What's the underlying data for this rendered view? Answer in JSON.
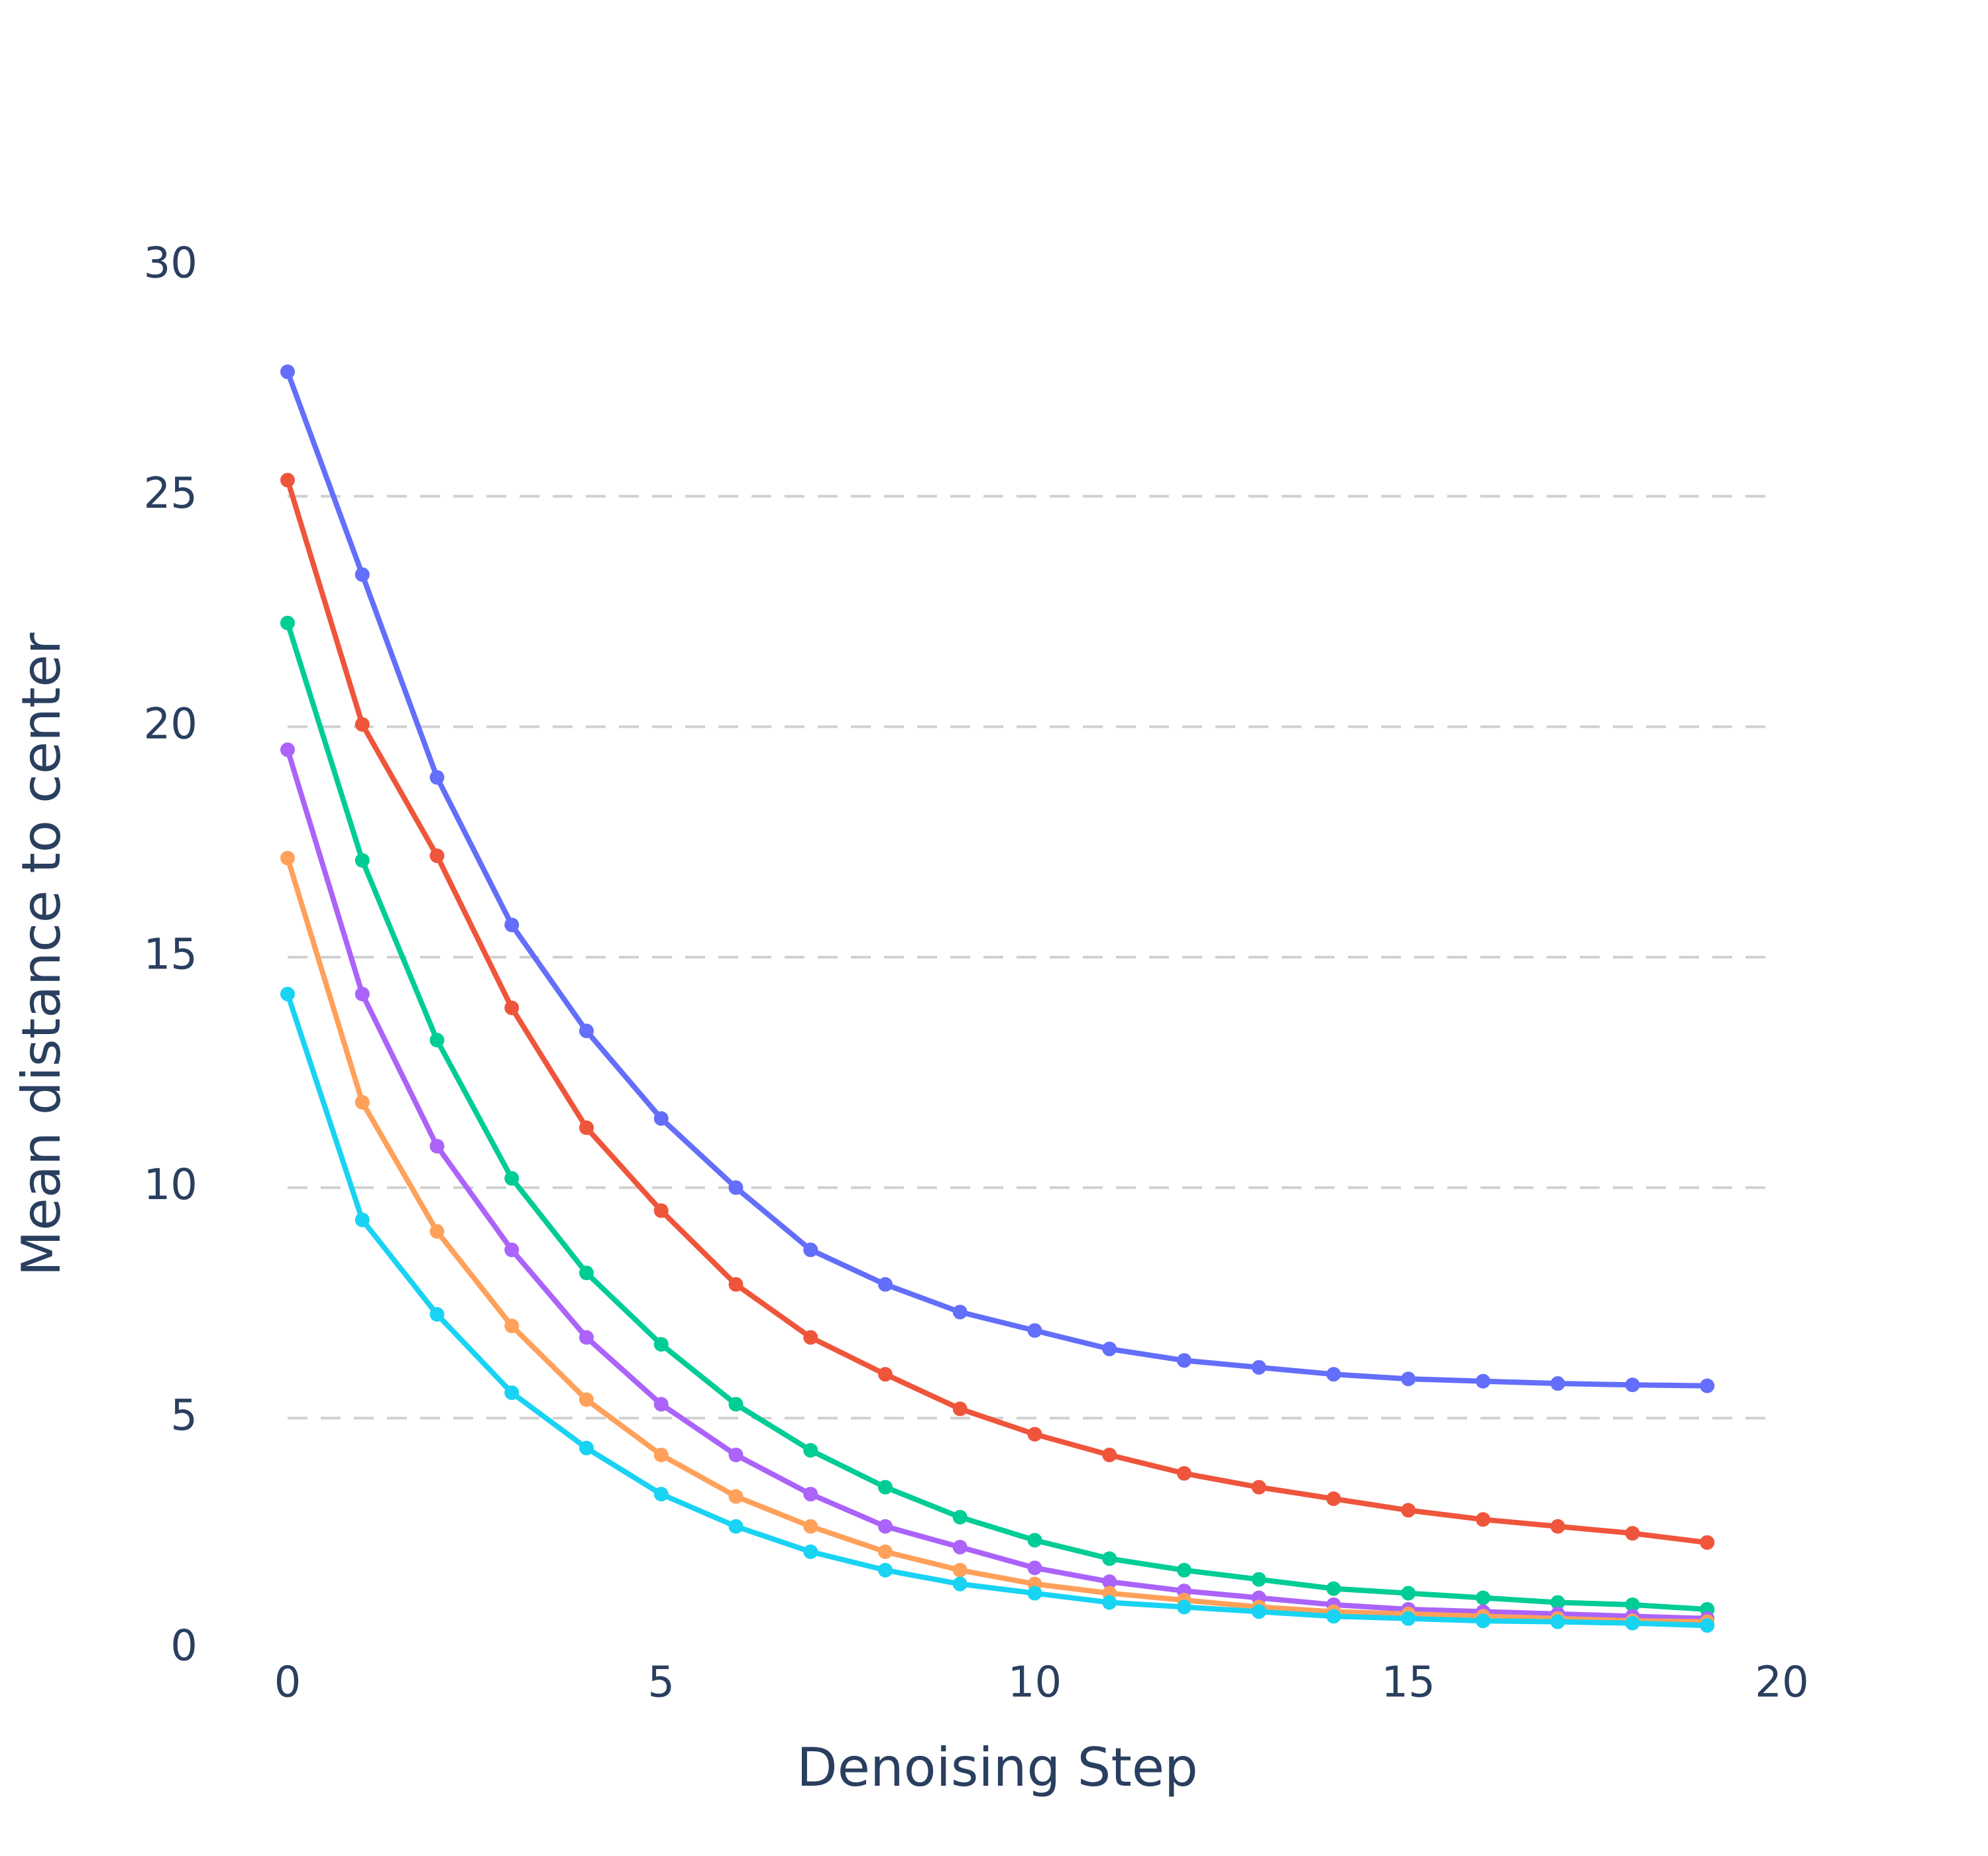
{
  "chart_data": {
    "type": "line",
    "xlabel": "Denoising Step",
    "ylabel": "Mean distance to center",
    "x": [
      0,
      1,
      2,
      3,
      4,
      5,
      6,
      7,
      8,
      9,
      10,
      11,
      12,
      13,
      14,
      15,
      16,
      17,
      18,
      19
    ],
    "series": [
      {
        "color": "#636efa",
        "values": [
          27.7,
          23.3,
          18.9,
          15.7,
          13.4,
          11.5,
          10.0,
          8.65,
          7.9,
          7.3,
          6.9,
          6.5,
          6.25,
          6.1,
          5.95,
          5.85,
          5.8,
          5.75,
          5.72,
          5.7
        ]
      },
      {
        "color": "#ef553b",
        "values": [
          25.35,
          20.05,
          17.2,
          13.9,
          11.3,
          9.5,
          7.9,
          6.75,
          5.95,
          5.2,
          4.65,
          4.2,
          3.8,
          3.5,
          3.25,
          3.0,
          2.8,
          2.65,
          2.5,
          2.3
        ]
      },
      {
        "color": "#00cc96",
        "values": [
          22.25,
          17.1,
          13.2,
          10.2,
          8.15,
          6.6,
          5.3,
          4.3,
          3.5,
          2.85,
          2.35,
          1.95,
          1.7,
          1.5,
          1.3,
          1.2,
          1.1,
          1.0,
          0.95,
          0.85
        ]
      },
      {
        "color": "#ab63fa",
        "values": [
          19.5,
          14.2,
          10.9,
          8.65,
          6.75,
          5.3,
          4.2,
          3.35,
          2.65,
          2.2,
          1.75,
          1.45,
          1.25,
          1.1,
          0.95,
          0.85,
          0.8,
          0.75,
          0.7,
          0.65
        ]
      },
      {
        "color": "#ffa15a",
        "values": [
          17.15,
          11.85,
          9.05,
          7.0,
          5.4,
          4.2,
          3.3,
          2.65,
          2.1,
          1.7,
          1.4,
          1.2,
          1.05,
          0.9,
          0.8,
          0.75,
          0.7,
          0.65,
          0.6,
          0.58
        ]
      },
      {
        "color": "#19d3f3",
        "values": [
          14.2,
          9.3,
          7.25,
          5.55,
          4.35,
          3.35,
          2.65,
          2.1,
          1.7,
          1.4,
          1.2,
          1.0,
          0.9,
          0.8,
          0.7,
          0.65,
          0.6,
          0.58,
          0.55,
          0.5
        ]
      }
    ],
    "xlim": [
      0,
      20
    ],
    "xticks": [
      0,
      5,
      10,
      15,
      20
    ],
    "ylim": [
      0,
      30
    ],
    "yticks": [
      0,
      5,
      10,
      15,
      20,
      25,
      30
    ],
    "grid": true
  }
}
